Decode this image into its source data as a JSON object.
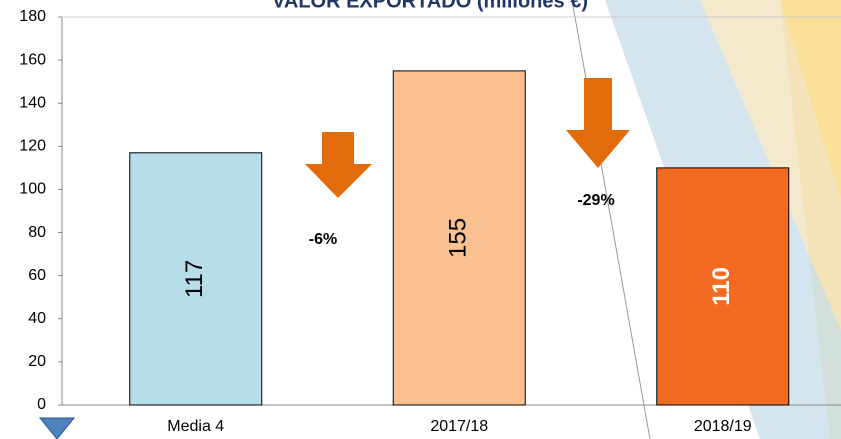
{
  "chart_data": {
    "type": "bar",
    "title": "VALOR EXPORTADO (millones €)",
    "categories": [
      "Media 4",
      "2017/18",
      "2018/19"
    ],
    "values": [
      117,
      155,
      110
    ],
    "colors": [
      "#b7dde8",
      "#fac090",
      "#f26b21"
    ],
    "label_colors": [
      "#000000",
      "#000000",
      "#ffffff"
    ],
    "ylim": [
      0,
      180
    ],
    "yticks": [
      0,
      20,
      40,
      60,
      80,
      100,
      120,
      140,
      160,
      180
    ],
    "grid": false,
    "annotations": [
      {
        "text": "-6%"
      },
      {
        "text": "-29%"
      }
    ]
  }
}
